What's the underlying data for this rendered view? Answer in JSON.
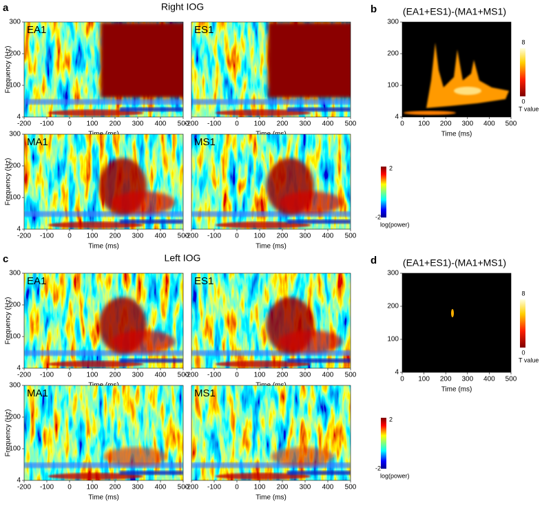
{
  "x_ticks": [
    -200,
    -100,
    0,
    100,
    200,
    300,
    400,
    500
  ],
  "y_ticks": [
    4,
    100,
    200,
    300
  ],
  "contrast_x_ticks": [
    0,
    100,
    200,
    300,
    400,
    500
  ],
  "x_label": "Time (ms)",
  "y_label": "Frequency (Hz)",
  "sections": [
    {
      "letter": "a",
      "title": "Right IOG",
      "plots": [
        "EA1",
        "ES1",
        "MA1",
        "MS1"
      ],
      "colorbar": {
        "max": 2,
        "min": -2,
        "label": "log(power)"
      },
      "contrast": {
        "letter": "b",
        "title": "(EA1+ES1)-(MA1+MS1)",
        "colorbar": {
          "max": 8,
          "min": 0,
          "label": "T value"
        }
      }
    },
    {
      "letter": "c",
      "title": "Left IOG",
      "plots": [
        "EA1",
        "ES1",
        "MA1",
        "MS1"
      ],
      "colorbar": {
        "max": 2,
        "min": -2,
        "label": "log(power)"
      },
      "contrast": {
        "letter": "d",
        "title": "(EA1+ES1)-(MA1+MS1)",
        "colorbar": {
          "max": 8,
          "min": 0,
          "label": "T value"
        }
      }
    }
  ]
}
